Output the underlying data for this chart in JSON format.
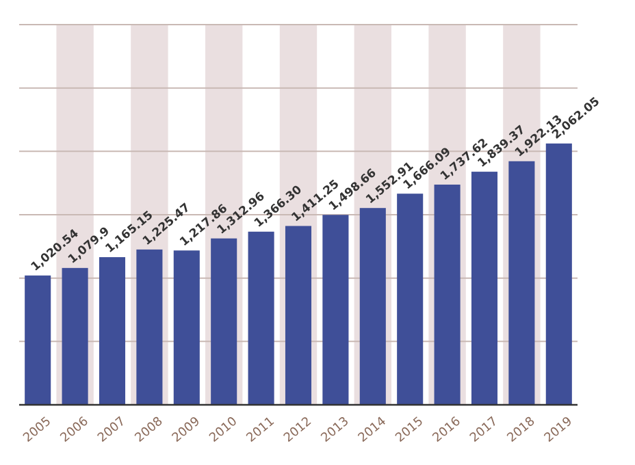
{
  "chart_data": {
    "type": "bar",
    "categories": [
      "2005",
      "2006",
      "2007",
      "2008",
      "2009",
      "2010",
      "2011",
      "2012",
      "2013",
      "2014",
      "2015",
      "2016",
      "2017",
      "2018",
      "2019"
    ],
    "values": [
      1020.54,
      1079.9,
      1165.15,
      1225.47,
      1217.86,
      1312.96,
      1366.3,
      1411.25,
      1498.66,
      1552.91,
      1666.09,
      1737.62,
      1839.37,
      1922.13,
      2062.05
    ],
    "value_labels": [
      "1,020.54",
      "1,079.9",
      "1,165.15",
      "1,225.47",
      "1,217.86",
      "1,312.96",
      "1,366.30",
      "1,411.25",
      "1,498.66",
      "1,552.91",
      "1,666.09",
      "1,737.62",
      "1,839.37",
      "1,922.13",
      "2,062.05"
    ],
    "color": "#3f4f98",
    "ylim": [
      0,
      3000
    ],
    "yticks": [
      {
        "value": 0,
        "label": null
      },
      {
        "value": 500,
        "label": null
      },
      {
        "value": 1000,
        "label": null
      },
      {
        "value": 1500,
        "label": null
      },
      {
        "value": 2000,
        "label": null
      },
      {
        "value": 2500,
        "label": null
      },
      {
        "value": 3000,
        "label": null
      }
    ],
    "grid": "y"
  }
}
